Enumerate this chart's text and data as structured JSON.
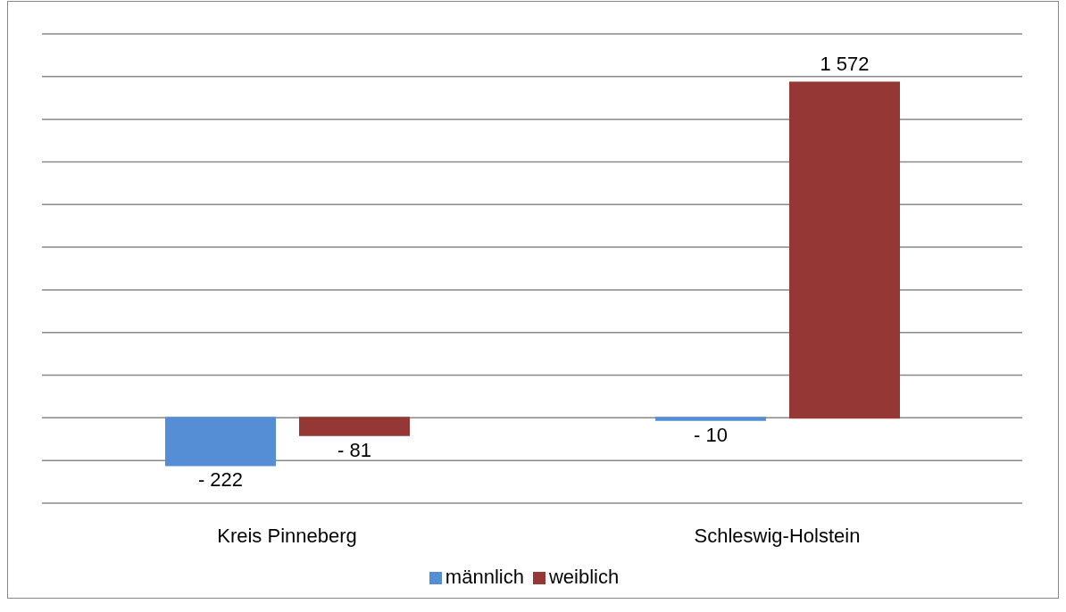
{
  "chart_data": {
    "type": "bar",
    "categories": [
      "Kreis Pinneberg",
      "Schleswig-Holstein"
    ],
    "series": [
      {
        "name": "männlich",
        "color": "#558ed5",
        "values": [
          -222,
          -10
        ],
        "value_labels": [
          "- 222",
          "- 10"
        ]
      },
      {
        "name": "weiblich",
        "color": "#953735",
        "values": [
          -81,
          1572
        ],
        "value_labels": [
          "- 81",
          "1 572"
        ]
      }
    ],
    "tick_labels": "x",
    "grid": "y",
    "legend": "bottom"
  }
}
